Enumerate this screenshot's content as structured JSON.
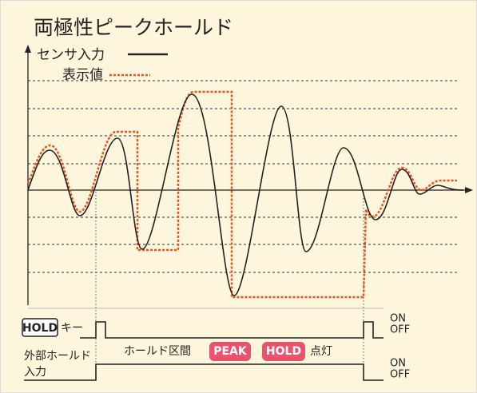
{
  "title": "両極性ピークホールド",
  "legend": {
    "sensor": "センサ入力",
    "display": "表示値"
  },
  "hold_key": {
    "badge": "HOLD",
    "label": "キー",
    "on": "ON",
    "off": "OFF"
  },
  "external": {
    "line1": "外部ホールド",
    "line2": "入力",
    "on": "ON",
    "off": "OFF"
  },
  "hold_period": {
    "label": "ホールド区間",
    "peak": "PEAK",
    "hold": "HOLD",
    "lit": "点灯"
  }
}
